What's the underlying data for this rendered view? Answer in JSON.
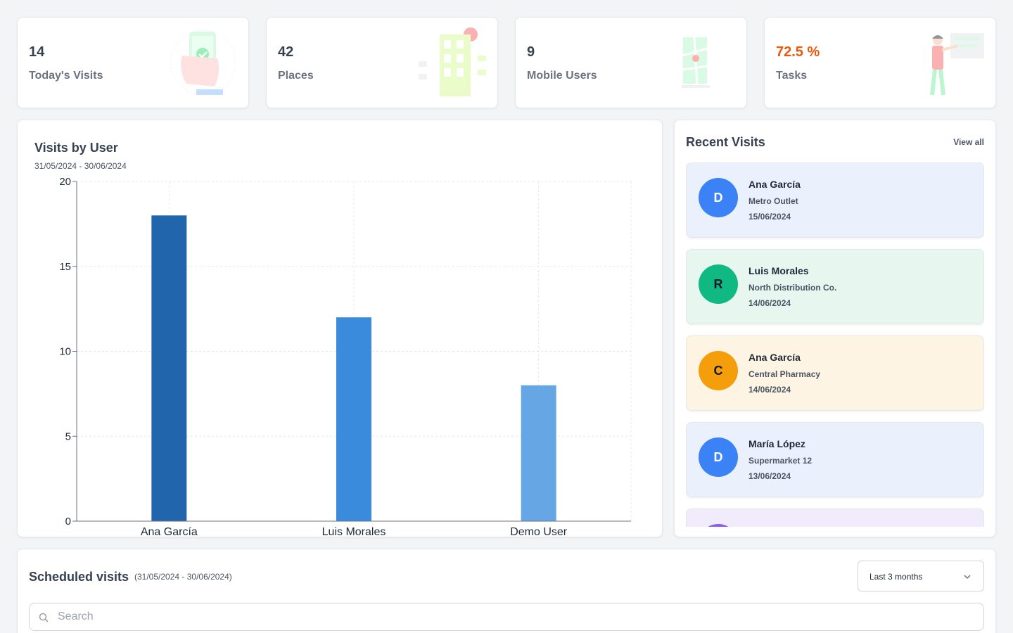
{
  "stats": [
    {
      "value": "14",
      "label": "Today's Visits",
      "illustration": "phone-check-illustration"
    },
    {
      "value": "42",
      "label": "Places",
      "illustration": "building-illustration"
    },
    {
      "value": "9",
      "label": "Mobile Users",
      "illustration": "map-pin-illustration"
    },
    {
      "value": "72.5 %",
      "label": "Tasks",
      "illustration": "person-task-illustration",
      "value_color": "#ea580c"
    }
  ],
  "chart_panel": {
    "title": "Visits by User",
    "subtitle": "31/05/2024 - 30/06/2024"
  },
  "chart_data": {
    "type": "bar",
    "categories": [
      "Ana García",
      "Luis Morales",
      "Demo User"
    ],
    "values": [
      18,
      12,
      8
    ],
    "bar_colors": [
      "#2166ac",
      "#3a8bdc",
      "#66a6e5"
    ],
    "ylim": [
      0,
      20
    ],
    "yticks": [
      0,
      5,
      10,
      15,
      20
    ],
    "grid": true
  },
  "recent": {
    "title": "Recent Visits",
    "view_all": "View all",
    "items": [
      {
        "initial": "D",
        "name": "Ana García",
        "place": "Metro Outlet",
        "date": "15/06/2024",
        "avatar_color": "#3b82f6",
        "initial_color": "#ffffff",
        "bg": "#ebf1fc"
      },
      {
        "initial": "R",
        "name": "Luis Morales",
        "place": "North Distribution Co.",
        "date": "14/06/2024",
        "avatar_color": "#10b981",
        "initial_color": "#111827",
        "bg": "#e7f6ef"
      },
      {
        "initial": "C",
        "name": "Ana García",
        "place": "Central Pharmacy",
        "date": "14/06/2024",
        "avatar_color": "#f59e0b",
        "initial_color": "#111827",
        "bg": "#fdf4e4"
      },
      {
        "initial": "D",
        "name": "María López",
        "place": "Supermarket 12",
        "date": "13/06/2024",
        "avatar_color": "#3b82f6",
        "initial_color": "#ffffff",
        "bg": "#ebf1fc"
      },
      {
        "initial": "",
        "name": "",
        "place": "",
        "date": "",
        "avatar_color": "#8b5cf6",
        "initial_color": "#ffffff",
        "bg": "#f1ecfb"
      }
    ]
  },
  "scheduled": {
    "title": "Scheduled visits",
    "range": "(31/05/2024 - 30/06/2024)",
    "select_value": "Last 3 months",
    "search_placeholder": "Search"
  }
}
